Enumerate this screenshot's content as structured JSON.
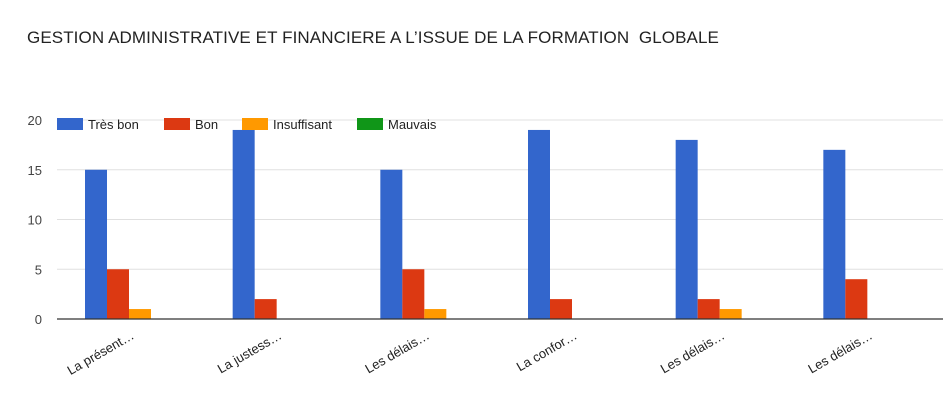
{
  "chart_data": {
    "type": "bar",
    "title": "GESTION ADMINISTRATIVE ET FINANCIERE A L’ISSUE DE LA FORMATION  GLOBALE",
    "categories": [
      "La présent…",
      "La justess…",
      "Les délais…",
      "La confor…",
      "Les délais…",
      "Les délais…"
    ],
    "series": [
      {
        "name": "Très bon",
        "color": "#3366cc",
        "values": [
          15,
          19,
          15,
          19,
          18,
          17
        ]
      },
      {
        "name": "Bon",
        "color": "#dc3912",
        "values": [
          5,
          2,
          5,
          2,
          2,
          4
        ]
      },
      {
        "name": "Insuffisant",
        "color": "#ff9900",
        "values": [
          1,
          0,
          1,
          0,
          1,
          0
        ]
      },
      {
        "name": "Mauvais",
        "color": "#109618",
        "values": [
          0,
          0,
          0,
          0,
          0,
          0
        ]
      }
    ],
    "yticks": [
      0,
      5,
      10,
      15,
      20
    ],
    "ylim": [
      0,
      20
    ],
    "xlabel": "",
    "ylabel": "",
    "legend_position": "top-left",
    "grid": true
  }
}
